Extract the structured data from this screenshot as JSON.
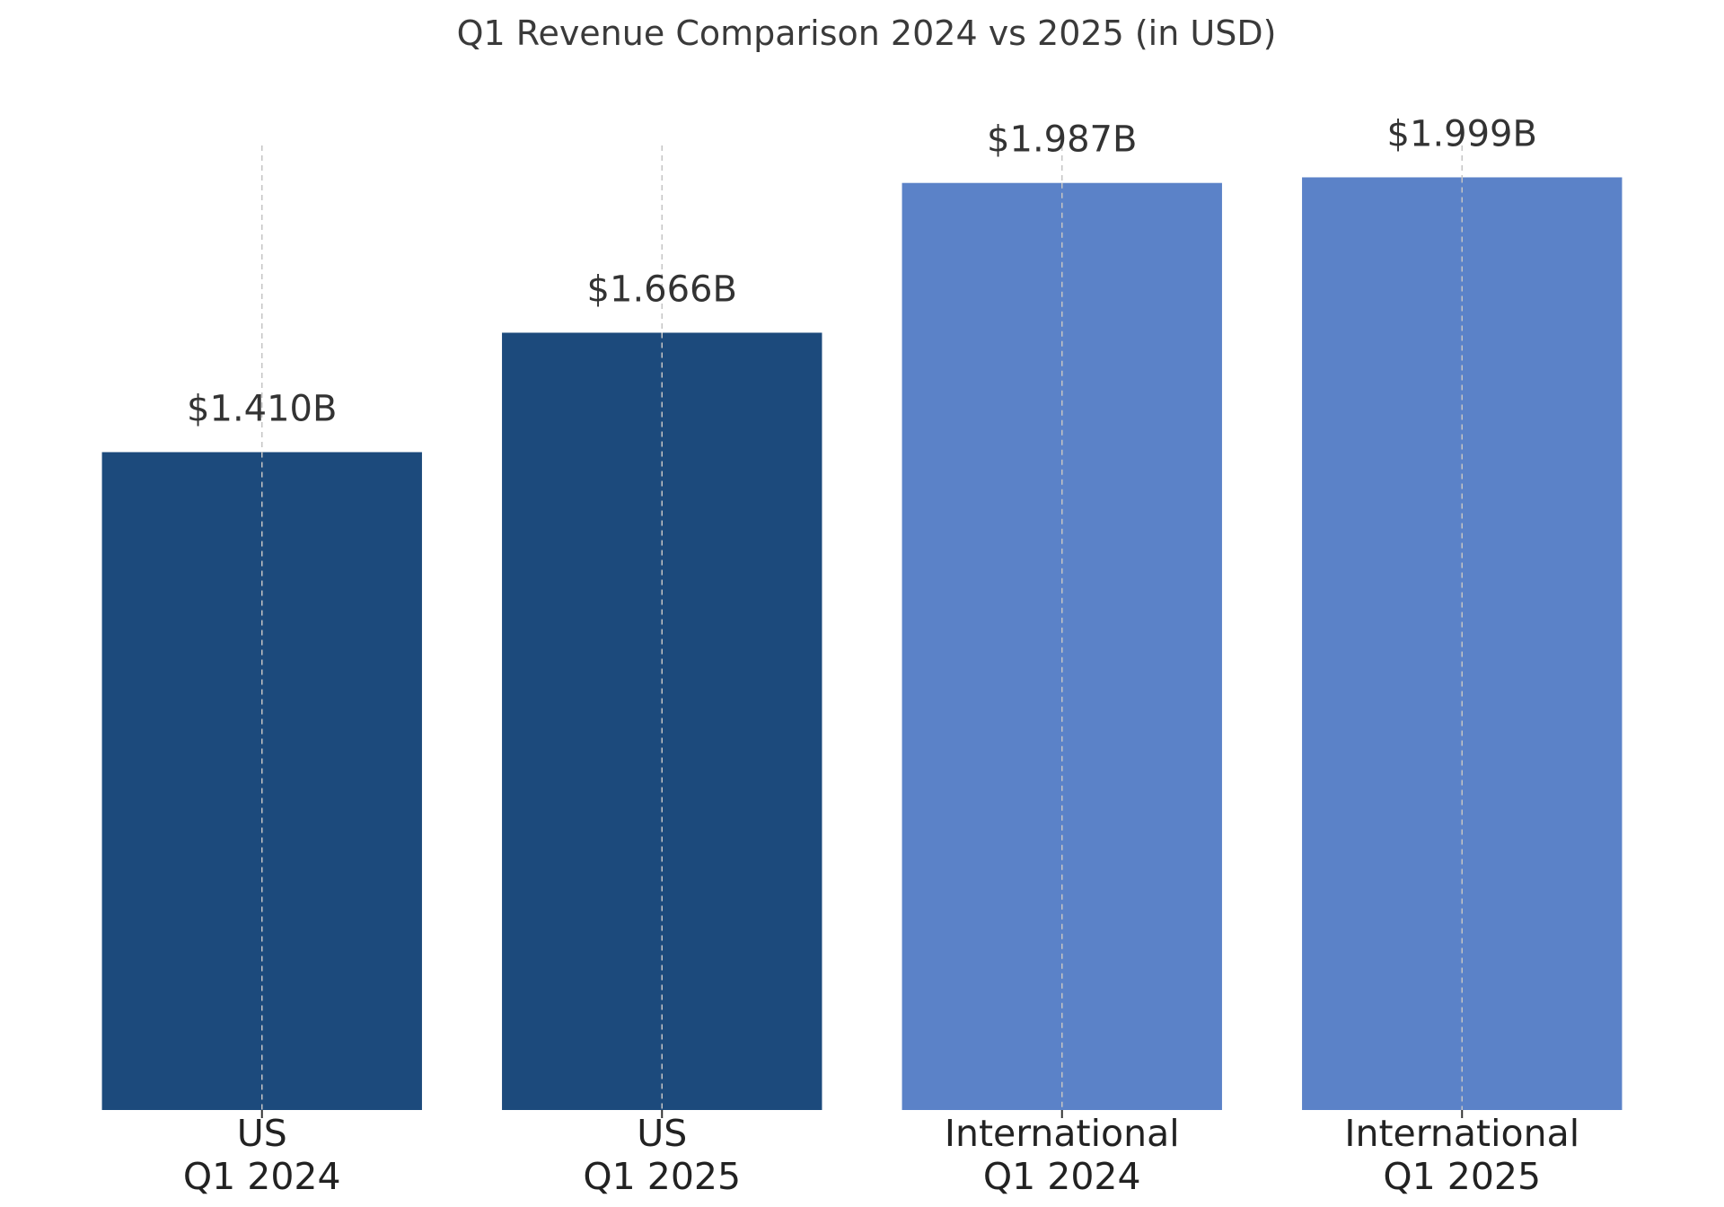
{
  "chart_data": {
    "type": "bar",
    "title": "Q1 Revenue Comparison 2024 vs 2025 (in USD)",
    "xlabel": "",
    "ylabel": "",
    "categories": [
      [
        "US",
        "Q1 2024"
      ],
      [
        "US",
        "Q1 2025"
      ],
      [
        "International",
        "Q1 2024"
      ],
      [
        "International",
        "Q1 2025"
      ]
    ],
    "values": [
      1.41,
      1.666,
      1.987,
      1.999
    ],
    "value_labels": [
      "$1.410B",
      "$1.666B",
      "$1.987B",
      "$1.999B"
    ],
    "unit": "USD billions",
    "colors": [
      "#1c4a7c",
      "#1c4a7c",
      "#5b82c8",
      "#5b82c8"
    ],
    "ylim": [
      0,
      2.1
    ],
    "grid": "vertical dashed",
    "y_axis_visible": false,
    "legend": "none"
  }
}
